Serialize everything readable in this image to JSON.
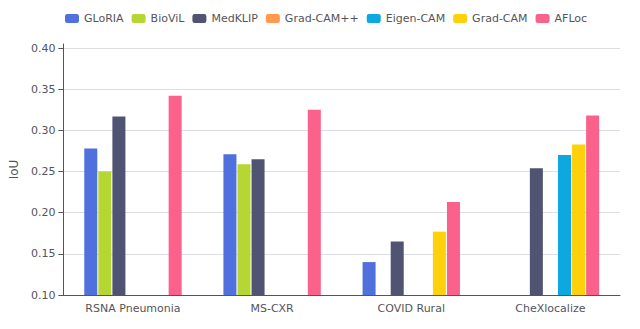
{
  "chart_data": {
    "type": "bar",
    "categories": [
      "RSNA Pneumonia",
      "MS-CXR",
      "COVID Rural",
      "CheXlocalize"
    ],
    "series": [
      {
        "name": "GLoRIA",
        "values": [
          0.278,
          0.271,
          0.14,
          null
        ]
      },
      {
        "name": "BioViL",
        "values": [
          0.25,
          0.259,
          null,
          null
        ]
      },
      {
        "name": "MedKLIP",
        "values": [
          0.317,
          0.265,
          0.165,
          0.254
        ]
      },
      {
        "name": "Grad-CAM++",
        "values": [
          null,
          null,
          null,
          null
        ]
      },
      {
        "name": "Eigen-CAM",
        "values": [
          null,
          null,
          null,
          0.27
        ]
      },
      {
        "name": "Grad-CAM",
        "values": [
          null,
          null,
          0.177,
          0.283
        ]
      },
      {
        "name": "AFLoc",
        "values": [
          0.342,
          0.325,
          0.213,
          0.318
        ]
      }
    ],
    "ylabel": "IoU",
    "ylim": [
      0.1,
      0.405
    ],
    "yticks": [
      {
        "value": 0.1,
        "label": "0.10"
      },
      {
        "value": 0.15,
        "label": "0.15"
      },
      {
        "value": 0.2,
        "label": "0.20"
      },
      {
        "value": 0.25,
        "label": "0.25"
      },
      {
        "value": 0.3,
        "label": "0.30"
      },
      {
        "value": 0.35,
        "label": "0.35"
      },
      {
        "value": 0.4,
        "label": "0.40"
      }
    ],
    "grid": true,
    "legend": "upper left"
  }
}
